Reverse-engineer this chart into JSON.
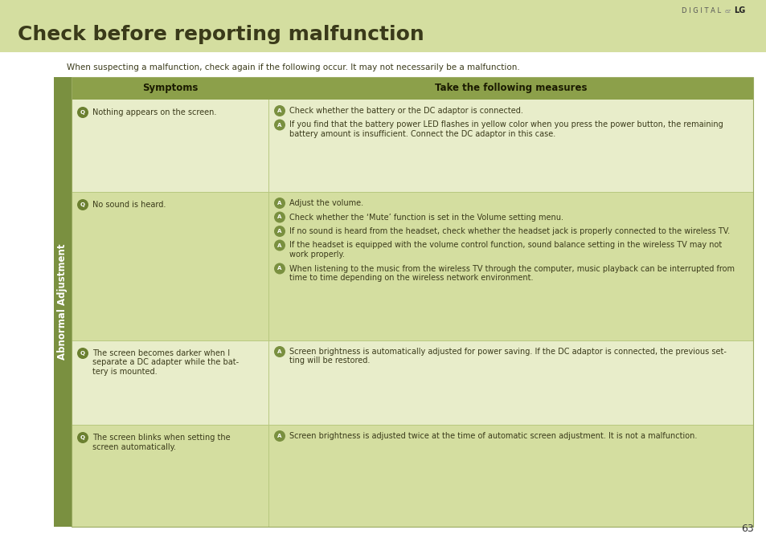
{
  "title": "Check before reporting malfunction",
  "subtitle": "When suspecting a malfunction, check again if the following occur. It may not necessarily be a malfunction.",
  "side_label": "Abnormal Adjustment",
  "header_symptoms": "Symptoms",
  "header_measures": "Take the following measures",
  "page_number": "63",
  "bg_color": "#ffffff",
  "title_bg": "#d4dea0",
  "header_bg": "#8ca04a",
  "row_bg_light": "#e8edca",
  "row_bg_medium": "#d4dea0",
  "side_bg": "#7a9040",
  "q_circle_color": "#6b8030",
  "a_circle_color": "#7a9040",
  "text_color": "#3a3a1a",
  "header_text_color": "#2a2a10",
  "rows": [
    {
      "symptom": "Nothing appears on the screen.",
      "symptom_lines": [
        "Nothing appears on the screen."
      ],
      "answers": [
        [
          "Check whether the battery or the DC adaptor is connected."
        ],
        [
          "If you find that the battery power LED flashes in yellow color when you press the power button, the remaining",
          "battery amount is insufficient. Connect the DC adaptor in this case."
        ]
      ],
      "bg": "#e8edca"
    },
    {
      "symptom": "No sound is heard.",
      "symptom_lines": [
        "No sound is heard."
      ],
      "answers": [
        [
          "Adjust the volume."
        ],
        [
          "Check whether the ‘Mute’ function is set in the Volume setting menu."
        ],
        [
          "If no sound is heard from the headset, check whether the headset jack is properly connected to the wireless TV."
        ],
        [
          "If the headset is equipped with the volume control function, sound balance setting in the wireless TV may not",
          "work properly."
        ],
        [
          "When listening to the music from the wireless TV through the computer, music playback can be interrupted from",
          "time to time depending on the wireless network environment."
        ]
      ],
      "bg": "#d4dea0"
    },
    {
      "symptom": "The screen becomes darker when I separate a DC adapter while the battery is mounted.",
      "symptom_lines": [
        "The screen becomes darker when I",
        "separate a DC adapter while the bat-",
        "tery is mounted."
      ],
      "answers": [
        [
          "Screen brightness is automatically adjusted for power saving. If the DC adaptor is connected, the previous set-",
          "ting will be restored."
        ]
      ],
      "bg": "#e8edca"
    },
    {
      "symptom": "The screen blinks when setting the screen automatically.",
      "symptom_lines": [
        "The screen blinks when setting the",
        "screen automatically."
      ],
      "answers": [
        [
          "Screen brightness is adjusted twice at the time of automatic screen adjustment. It is not a malfunction."
        ]
      ],
      "bg": "#d4dea0"
    }
  ]
}
